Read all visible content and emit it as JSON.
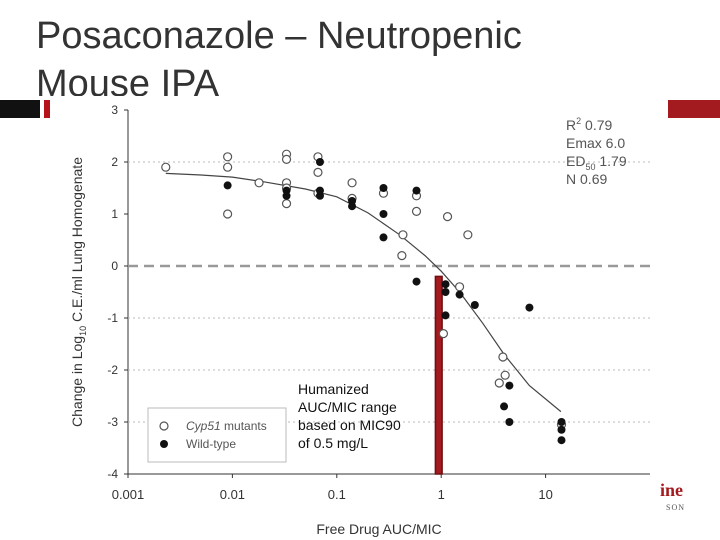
{
  "slide": {
    "title": "Posaconazole – Neutropenic Mouse IPA"
  },
  "logo": {
    "text": "ine",
    "subtext": "SON"
  },
  "annotation": {
    "lines": [
      "Humanized",
      "AUC/MIC range",
      "based on MIC90",
      "of 0.5 mg/L"
    ]
  },
  "colors": {
    "mutant_edge": "#555555",
    "wildtype_fill": "#111111",
    "highlight_bar": "#a31b1f",
    "fit_line": "#444444",
    "zero_line": "#999999"
  },
  "chart_data": {
    "type": "scatter",
    "xscale": "log",
    "xlim": [
      0.001,
      100
    ],
    "ylim": [
      -4,
      3
    ],
    "xticks": [
      "0.001",
      "0.01",
      "0.1",
      "1",
      "10"
    ],
    "yticks": [
      "3",
      "2",
      "1",
      "0",
      "-1",
      "-2",
      "-3",
      "-4"
    ],
    "xlabel": "Free Drug AUC/MIC",
    "ylabel": "Change in Log10 C.E./ml Lung Homogenate",
    "ylabel_parts": {
      "pre": "Change in Log",
      "sub": "10",
      "post": " C.E./ml Lung Homogenate"
    },
    "stats": [
      {
        "label": "R",
        "sup": "2",
        "value": "0.79"
      },
      {
        "label": "Emax",
        "value": "6.0"
      },
      {
        "label": "ED",
        "sub": "50",
        "value": "1.79"
      },
      {
        "label": "N",
        "value": "0.69"
      }
    ],
    "legend": [
      {
        "marker": "open",
        "label": "Cyp51 mutants",
        "italic_part": "Cyp51",
        "rest": " mutants"
      },
      {
        "marker": "filled",
        "label": "Wild-type"
      }
    ],
    "series": [
      {
        "name": "Cyp51 mutants",
        "marker": "open",
        "points": [
          [
            0.0023,
            1.9
          ],
          [
            0.009,
            2.1
          ],
          [
            0.009,
            1.9
          ],
          [
            0.009,
            1.0
          ],
          [
            0.018,
            1.6
          ],
          [
            0.033,
            2.15
          ],
          [
            0.033,
            2.05
          ],
          [
            0.033,
            1.6
          ],
          [
            0.033,
            1.5
          ],
          [
            0.033,
            1.2
          ],
          [
            0.066,
            2.1
          ],
          [
            0.066,
            1.8
          ],
          [
            0.066,
            1.4
          ],
          [
            0.14,
            1.6
          ],
          [
            0.14,
            1.3
          ],
          [
            0.28,
            1.4
          ],
          [
            0.58,
            1.35
          ],
          [
            0.58,
            1.05
          ],
          [
            0.43,
            0.6
          ],
          [
            0.42,
            0.2
          ],
          [
            1.15,
            0.95
          ],
          [
            1.8,
            0.6
          ],
          [
            1.05,
            -1.3
          ],
          [
            1.5,
            -0.4
          ],
          [
            3.9,
            -1.75
          ],
          [
            3.6,
            -2.25
          ],
          [
            4.1,
            -2.1
          ],
          [
            14.2,
            -3.05
          ]
        ]
      },
      {
        "name": "Wild-type",
        "marker": "filled",
        "points": [
          [
            0.009,
            1.55
          ],
          [
            0.033,
            1.45
          ],
          [
            0.033,
            1.35
          ],
          [
            0.069,
            2.0
          ],
          [
            0.069,
            1.45
          ],
          [
            0.069,
            1.35
          ],
          [
            0.14,
            1.25
          ],
          [
            0.14,
            1.15
          ],
          [
            0.28,
            1.5
          ],
          [
            0.28,
            1.0
          ],
          [
            0.28,
            0.55
          ],
          [
            0.58,
            1.45
          ],
          [
            0.58,
            -0.3
          ],
          [
            1.1,
            -0.35
          ],
          [
            1.1,
            -0.5
          ],
          [
            1.5,
            -0.55
          ],
          [
            1.1,
            -0.95
          ],
          [
            2.1,
            -0.75
          ],
          [
            4.0,
            -2.7
          ],
          [
            4.5,
            -2.3
          ],
          [
            4.5,
            -3.0
          ],
          [
            7.0,
            -0.8
          ],
          [
            14.2,
            -3.0
          ],
          [
            14.2,
            -3.15
          ],
          [
            14.2,
            -3.35
          ]
        ]
      }
    ],
    "fit_curve": {
      "name": "Fitted Emax model",
      "points": [
        [
          0.0023,
          1.78
        ],
        [
          0.005,
          1.75
        ],
        [
          0.01,
          1.71
        ],
        [
          0.02,
          1.62
        ],
        [
          0.05,
          1.48
        ],
        [
          0.1,
          1.33
        ],
        [
          0.2,
          1.02
        ],
        [
          0.4,
          0.6
        ],
        [
          0.7,
          0.2
        ],
        [
          1.0,
          -0.1
        ],
        [
          1.5,
          -0.5
        ],
        [
          2.5,
          -1.1
        ],
        [
          4.0,
          -1.7
        ],
        [
          7.0,
          -2.3
        ],
        [
          14.0,
          -2.8
        ]
      ]
    },
    "reference_lines": [
      {
        "axis": "y",
        "value": 0,
        "style": "dashed"
      },
      {
        "axis": "y",
        "value": -1,
        "style": "dotted"
      },
      {
        "axis": "y",
        "value": -2,
        "style": "dotted"
      },
      {
        "axis": "y",
        "value": -3,
        "style": "dotted"
      },
      {
        "axis": "y",
        "value": 2,
        "style": "dotted"
      }
    ],
    "highlight_range": {
      "x_from": 0.88,
      "x_to": 1.02,
      "y_from": -4,
      "y_to": -0.2
    }
  }
}
